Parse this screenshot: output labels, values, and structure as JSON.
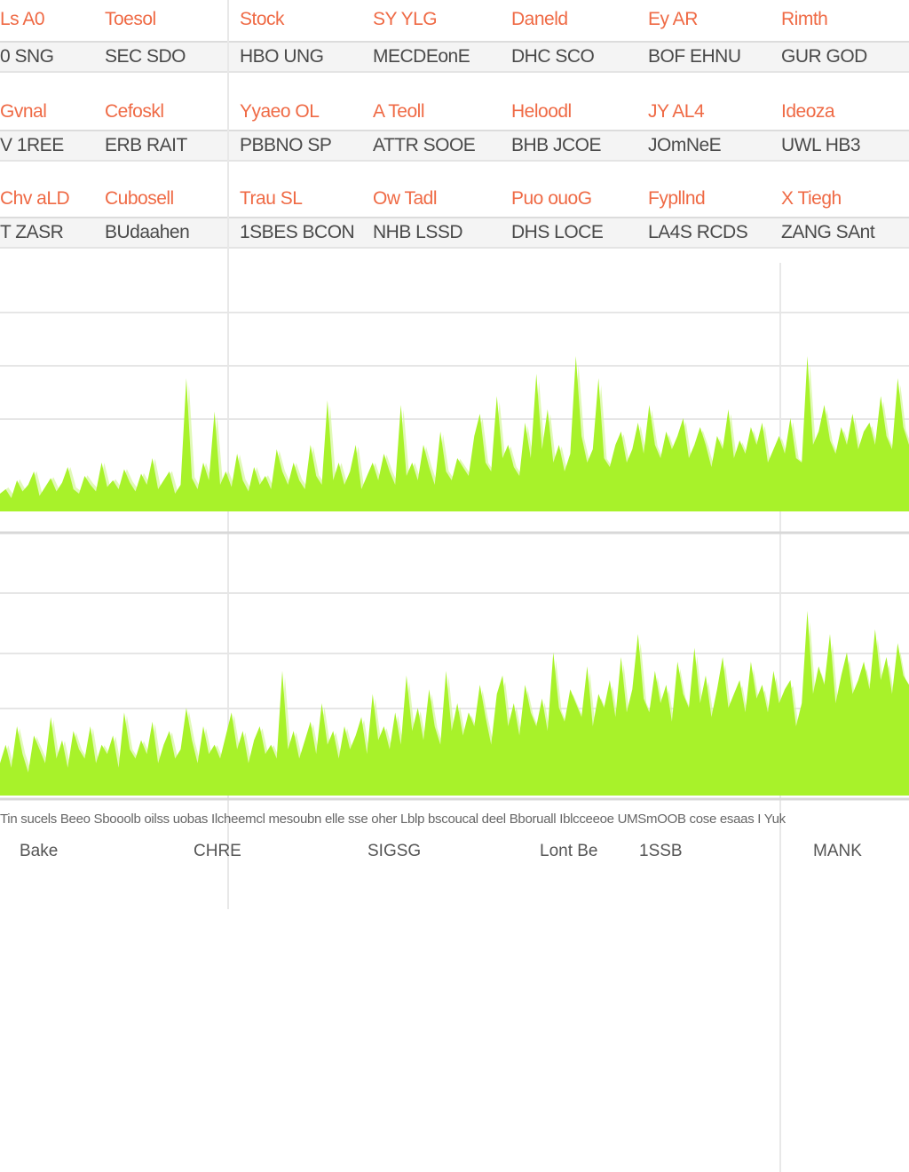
{
  "stats": {
    "rows": [
      {
        "kind": "label",
        "cells": [
          "Ls A0",
          "Toesol",
          "Stock",
          "SY YLG",
          "Daneld",
          "Ey AR",
          "Rimth"
        ]
      },
      {
        "kind": "value",
        "cells": [
          "0 SNG",
          "SEC SDO",
          "HBO UNG",
          "MECDEonE",
          "DHC SCO",
          "BOF EHNU",
          "GUR GOD"
        ]
      },
      {
        "kind": "label",
        "cells": [
          "Gvnal",
          "Cefoskl",
          "Yyaeo OL",
          "A Teoll",
          "Heloodl",
          "JY AL4",
          "Ideoza"
        ]
      },
      {
        "kind": "value",
        "cells": [
          "V 1REE",
          "ERB RAIT",
          "PBBNO SP",
          "ATTR SOOE",
          "BHB JCOE",
          "JOmNeE",
          "UWL HB3"
        ]
      },
      {
        "kind": "label",
        "cells": [
          "Chv aLD",
          "Cubosell",
          "Trau SL",
          "Ow Tadl",
          "Puo ouoG",
          "Fypllnd",
          "X Tiegh"
        ]
      },
      {
        "kind": "value",
        "cells": [
          "T ZASR",
          "BUdaahen",
          "1SBES BCON",
          "NHB LSSD",
          "DHS LOCE",
          "LA4S RCDS",
          "ZANG SAnt"
        ]
      }
    ]
  },
  "colors": {
    "accent_label": "#ef6a45",
    "series_fill": "#a8f22a",
    "series_shadow": "#d4f79a",
    "grid": "#e6e6e6"
  },
  "chart_data": [
    {
      "type": "area",
      "title": "",
      "xlabel": "",
      "ylabel": "",
      "ylim": [
        0,
        100
      ],
      "grid": true,
      "series": [
        {
          "values": [
            8,
            10,
            6,
            14,
            9,
            12,
            18,
            7,
            11,
            15,
            9,
            13,
            20,
            10,
            8,
            16,
            12,
            9,
            22,
            11,
            14,
            10,
            19,
            13,
            9,
            17,
            12,
            24,
            10,
            14,
            18,
            8,
            12,
            60,
            15,
            10,
            22,
            14,
            45,
            12,
            18,
            11,
            26,
            14,
            9,
            20,
            12,
            16,
            10,
            28,
            18,
            12,
            22,
            14,
            10,
            30,
            16,
            12,
            50,
            14,
            22,
            12,
            18,
            30,
            10,
            16,
            22,
            14,
            26,
            18,
            12,
            48,
            16,
            22,
            14,
            30,
            20,
            12,
            36,
            18,
            14,
            24,
            20,
            16,
            34,
            44,
            22,
            18,
            52,
            24,
            30,
            20,
            16,
            40,
            24,
            62,
            28,
            46,
            22,
            30,
            18,
            26,
            70,
            34,
            22,
            28,
            60,
            24,
            20,
            30,
            36,
            22,
            28,
            40,
            26,
            48,
            30,
            24,
            36,
            28,
            34,
            42,
            24,
            30,
            38,
            30,
            20,
            34,
            28,
            46,
            24,
            32,
            26,
            38,
            30,
            40,
            22,
            28,
            34,
            26,
            42,
            24,
            22,
            70,
            30,
            36,
            48,
            32,
            26,
            38,
            30,
            44,
            28,
            36,
            40,
            30,
            52,
            34,
            28,
            60,
            38,
            30
          ]
        }
      ]
    },
    {
      "type": "area",
      "title": "",
      "xlabel": "",
      "ylabel": "",
      "ylim": [
        0,
        100
      ],
      "grid": true,
      "series": [
        {
          "values": [
            14,
            22,
            12,
            30,
            18,
            10,
            26,
            20,
            14,
            34,
            16,
            24,
            12,
            28,
            20,
            16,
            30,
            14,
            22,
            18,
            26,
            12,
            36,
            20,
            16,
            24,
            18,
            32,
            14,
            22,
            28,
            16,
            20,
            38,
            24,
            14,
            30,
            18,
            22,
            16,
            26,
            36,
            20,
            28,
            14,
            24,
            30,
            18,
            22,
            16,
            54,
            20,
            28,
            16,
            24,
            32,
            18,
            40,
            22,
            28,
            16,
            30,
            20,
            26,
            34,
            18,
            44,
            24,
            30,
            20,
            36,
            22,
            52,
            28,
            38,
            24,
            46,
            30,
            22,
            54,
            28,
            40,
            26,
            36,
            30,
            48,
            34,
            22,
            44,
            52,
            30,
            40,
            26,
            48,
            36,
            30,
            42,
            28,
            62,
            38,
            32,
            46,
            40,
            34,
            56,
            30,
            44,
            38,
            50,
            34,
            60,
            36,
            46,
            70,
            42,
            36,
            54,
            40,
            48,
            32,
            58,
            44,
            38,
            64,
            40,
            52,
            34,
            46,
            60,
            38,
            44,
            50,
            36,
            58,
            42,
            48,
            36,
            54,
            40,
            46,
            50,
            30,
            40,
            80,
            44,
            56,
            48,
            70,
            40,
            52,
            62,
            44,
            50,
            58,
            46,
            72,
            50,
            60,
            44,
            66,
            52,
            48
          ]
        }
      ]
    }
  ],
  "footer": {
    "notes": "Tin sucels  Beeo Sbooolb oilss uobas Ilcheemcl mesoubn elle sse  oher Lblp  bscoucal deel Bboruall Iblcceeoe  UMSmOOB cose  esaas I Yuk",
    "labels": [
      "Bake",
      "CHRE",
      "SIGSG",
      "Lont Be",
      "1SSB",
      "MANK"
    ]
  }
}
